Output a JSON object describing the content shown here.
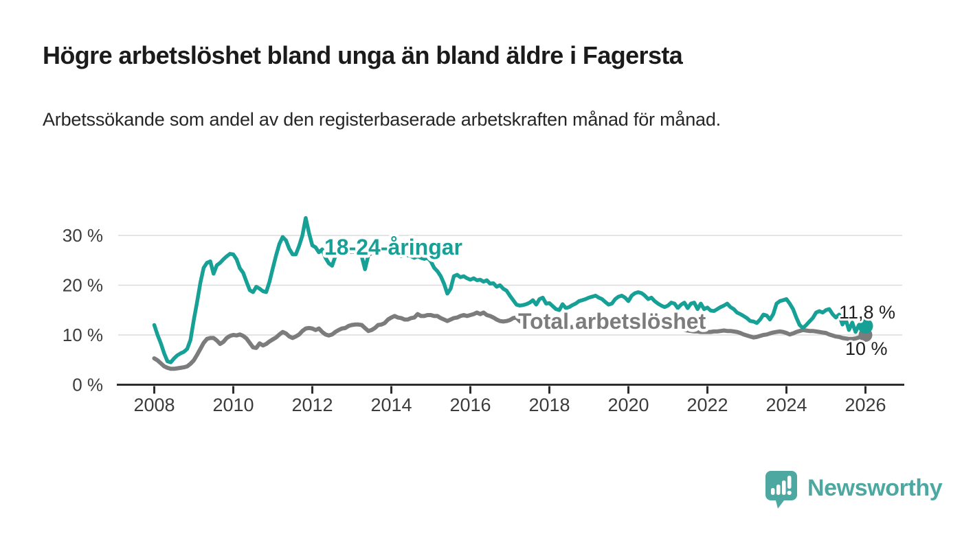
{
  "header": {
    "title": "Högre arbetslöshet bland unga än bland äldre i Fagersta",
    "subtitle": "Arbetssökande som andel av den registerbaserade arbetskraften månad för månad."
  },
  "chart_data": {
    "type": "line",
    "title": "",
    "xlabel": "",
    "ylabel": "",
    "x_unit": "month",
    "x_start": "2008-01",
    "x_end": "2026-01",
    "x_tick_labels": [
      "2008",
      "2010",
      "2012",
      "2014",
      "2016",
      "2018",
      "2020",
      "2022",
      "2024",
      "2026"
    ],
    "y_tick_labels": [
      "0 %",
      "10 %",
      "20 %",
      "30 %"
    ],
    "y_tick_values": [
      0,
      10,
      20,
      30
    ],
    "ylim": [
      0,
      35
    ],
    "grid": true,
    "colors": {
      "young": "#16A096",
      "total": "#7C7C7C",
      "gridline": "#DBDBDB",
      "axis": "#2D2D2D",
      "tick_text": "#3C3C3C",
      "value_text": "#1F1F1F"
    },
    "series": [
      {
        "name": "Total arbetslöshet",
        "end_label": "10 %",
        "end_value": 10.0,
        "values": [
          5.3,
          4.9,
          4.3,
          3.7,
          3.4,
          3.2,
          3.2,
          3.3,
          3.4,
          3.5,
          3.7,
          4.2,
          4.9,
          6.0,
          7.2,
          8.4,
          9.2,
          9.4,
          9.4,
          8.9,
          8.2,
          8.6,
          9.4,
          9.8,
          10.0,
          9.9,
          10.1,
          9.8,
          9.3,
          8.4,
          7.5,
          7.4,
          8.3,
          7.9,
          8.2,
          8.7,
          9.1,
          9.5,
          10.1,
          10.6,
          10.3,
          9.7,
          9.4,
          9.7,
          10.1,
          10.8,
          11.3,
          11.4,
          11.3,
          11.0,
          11.3,
          10.6,
          10.1,
          9.9,
          10.1,
          10.6,
          11.0,
          11.3,
          11.4,
          11.8,
          12.0,
          12.1,
          12.1,
          12.0,
          11.4,
          10.8,
          11.0,
          11.4,
          12.0,
          12.1,
          12.4,
          13.1,
          13.5,
          13.8,
          13.5,
          13.4,
          13.1,
          13.1,
          13.4,
          13.5,
          14.2,
          13.8,
          13.8,
          14.0,
          14.0,
          13.8,
          13.8,
          13.4,
          13.1,
          12.8,
          13.1,
          13.4,
          13.5,
          13.8,
          14.0,
          13.8,
          14.0,
          14.2,
          14.5,
          14.2,
          14.5,
          14.0,
          13.8,
          13.5,
          13.1,
          12.8,
          12.7,
          12.8,
          13.0,
          13.4,
          13.5,
          12.8,
          12.4,
          12.1,
          12.1,
          12.0,
          11.9,
          11.8,
          11.9,
          12.0,
          12.1,
          12.0,
          11.8,
          11.6,
          11.5,
          11.4,
          11.5,
          11.6,
          11.7,
          11.8,
          11.9,
          12.0,
          12.0,
          11.9,
          11.8,
          11.7,
          11.6,
          11.5,
          11.6,
          11.7,
          11.8,
          11.9,
          12.0,
          12.0,
          12.0,
          12.1,
          12.3,
          12.5,
          12.6,
          12.5,
          12.4,
          12.3,
          12.2,
          12.0,
          11.9,
          11.8,
          11.7,
          11.6,
          11.5,
          11.3,
          11.2,
          11.0,
          10.9,
          10.8,
          10.7,
          10.7,
          10.6,
          10.6,
          10.6,
          10.6,
          10.7,
          10.7,
          10.8,
          10.9,
          10.8,
          10.8,
          10.7,
          10.6,
          10.4,
          10.1,
          9.9,
          9.7,
          9.5,
          9.6,
          9.8,
          10.0,
          10.1,
          10.3,
          10.5,
          10.6,
          10.7,
          10.6,
          10.4,
          10.1,
          10.3,
          10.6,
          10.8,
          11.0,
          10.9,
          10.8,
          10.8,
          10.7,
          10.6,
          10.5,
          10.4,
          10.1,
          9.9,
          9.7,
          9.6,
          9.4,
          9.3,
          9.2,
          9.2,
          9.3,
          9.5,
          9.8,
          10.0
        ]
      },
      {
        "name": "18-24-åringar",
        "end_label": "11,8 %",
        "end_value": 11.8,
        "values": [
          12.0,
          10.0,
          8.3,
          6.3,
          4.7,
          4.5,
          5.3,
          5.9,
          6.3,
          6.6,
          7.2,
          9.0,
          13.0,
          16.6,
          20.5,
          23.5,
          24.5,
          24.8,
          22.3,
          24.0,
          24.5,
          25.2,
          25.8,
          26.3,
          26.2,
          25.2,
          23.4,
          22.5,
          20.7,
          19.0,
          18.6,
          19.7,
          19.3,
          18.8,
          18.6,
          20.7,
          23.4,
          26.0,
          28.3,
          29.7,
          29.0,
          27.3,
          26.2,
          26.2,
          27.9,
          30.0,
          33.5,
          30.5,
          28.0,
          27.6,
          26.6,
          27.2,
          25.5,
          24.4,
          23.9,
          25.8,
          26.2,
          26.4,
          26.2,
          26.5,
          26.8,
          26.6,
          26.3,
          25.8,
          23.2,
          26.0,
          26.5,
          26.8,
          27.0,
          27.2,
          27.0,
          26.8,
          27.0,
          26.5,
          26.0,
          25.8,
          26.2,
          26.0,
          25.8,
          25.5,
          25.8,
          25.5,
          25.3,
          25.5,
          24.8,
          23.5,
          22.8,
          21.8,
          20.3,
          18.3,
          19.3,
          21.8,
          22.1,
          21.6,
          21.8,
          21.4,
          21.1,
          21.4,
          21.0,
          21.1,
          20.7,
          21.0,
          20.3,
          20.4,
          19.7,
          20.0,
          19.3,
          18.9,
          17.9,
          17.0,
          16.1,
          15.9,
          16.0,
          16.2,
          16.5,
          17.0,
          16.1,
          17.2,
          17.5,
          16.3,
          16.4,
          15.8,
          15.2,
          15.0,
          16.2,
          15.4,
          15.6,
          16.0,
          16.3,
          16.8,
          17.0,
          17.2,
          17.5,
          17.7,
          17.9,
          17.5,
          17.2,
          16.6,
          16.1,
          16.3,
          17.2,
          17.7,
          17.9,
          17.5,
          16.8,
          17.9,
          18.4,
          18.6,
          18.4,
          17.9,
          17.2,
          17.5,
          16.8,
          16.3,
          15.9,
          15.6,
          15.9,
          16.5,
          16.3,
          15.4,
          16.1,
          16.5,
          15.4,
          16.3,
          16.5,
          15.2,
          16.3,
          15.2,
          15.5,
          14.9,
          14.8,
          15.2,
          15.6,
          15.9,
          16.3,
          15.6,
          15.2,
          14.5,
          14.2,
          13.8,
          13.4,
          12.8,
          12.7,
          12.4,
          13.1,
          14.1,
          13.9,
          13.1,
          14.2,
          16.3,
          16.8,
          17.0,
          17.2,
          16.3,
          15.2,
          13.5,
          12.0,
          11.4,
          12.0,
          12.7,
          13.4,
          14.5,
          14.8,
          14.5,
          15.0,
          15.2,
          14.2,
          13.5,
          14.1,
          12.1,
          13.1,
          11.0,
          12.5,
          10.6,
          12.0,
          11.0,
          11.8
        ]
      }
    ],
    "annotations": [
      {
        "text": "18-24-åringar",
        "series": "young"
      },
      {
        "text": "Total arbetslöshet",
        "series": "total"
      }
    ],
    "legend_position": "inline-labels"
  },
  "branding": {
    "logo_text": "Newsworthy",
    "logo_color": "#4CA8A1",
    "logo_icon": "bar-chart-speech-bubble-icon"
  }
}
